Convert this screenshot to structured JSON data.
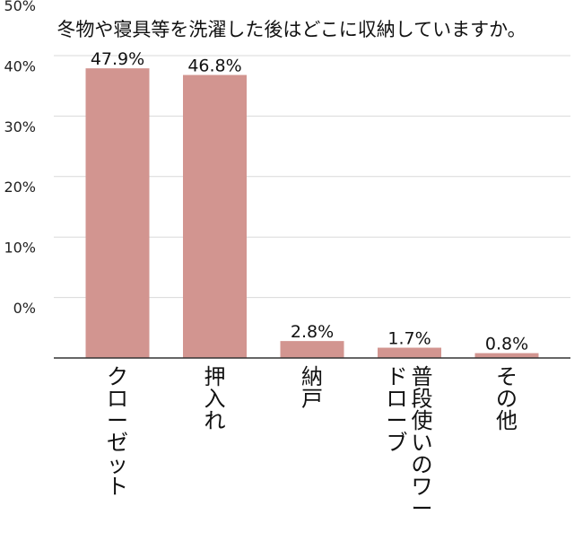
{
  "chart_data": {
    "type": "bar",
    "title": "冬物や寝具等を洗濯した後はどこに収納していますか。",
    "categories": [
      "クローゼット",
      "押入れ",
      "納戸",
      "普段使いのワードローブ",
      "その他"
    ],
    "values": [
      47.9,
      46.8,
      2.8,
      1.7,
      0.8
    ],
    "data_labels": [
      "47.9%",
      "46.8%",
      "2.8%",
      "1.7%",
      "0.8%"
    ],
    "y_ticks": [
      "0%",
      "10%",
      "20%",
      "30%",
      "40%",
      "50%"
    ],
    "ylim": [
      0,
      50
    ],
    "grid": true,
    "legend": "none",
    "bar_color": "#d29590",
    "grid_color": "#d9d9d9",
    "axis_color": "#333333"
  }
}
